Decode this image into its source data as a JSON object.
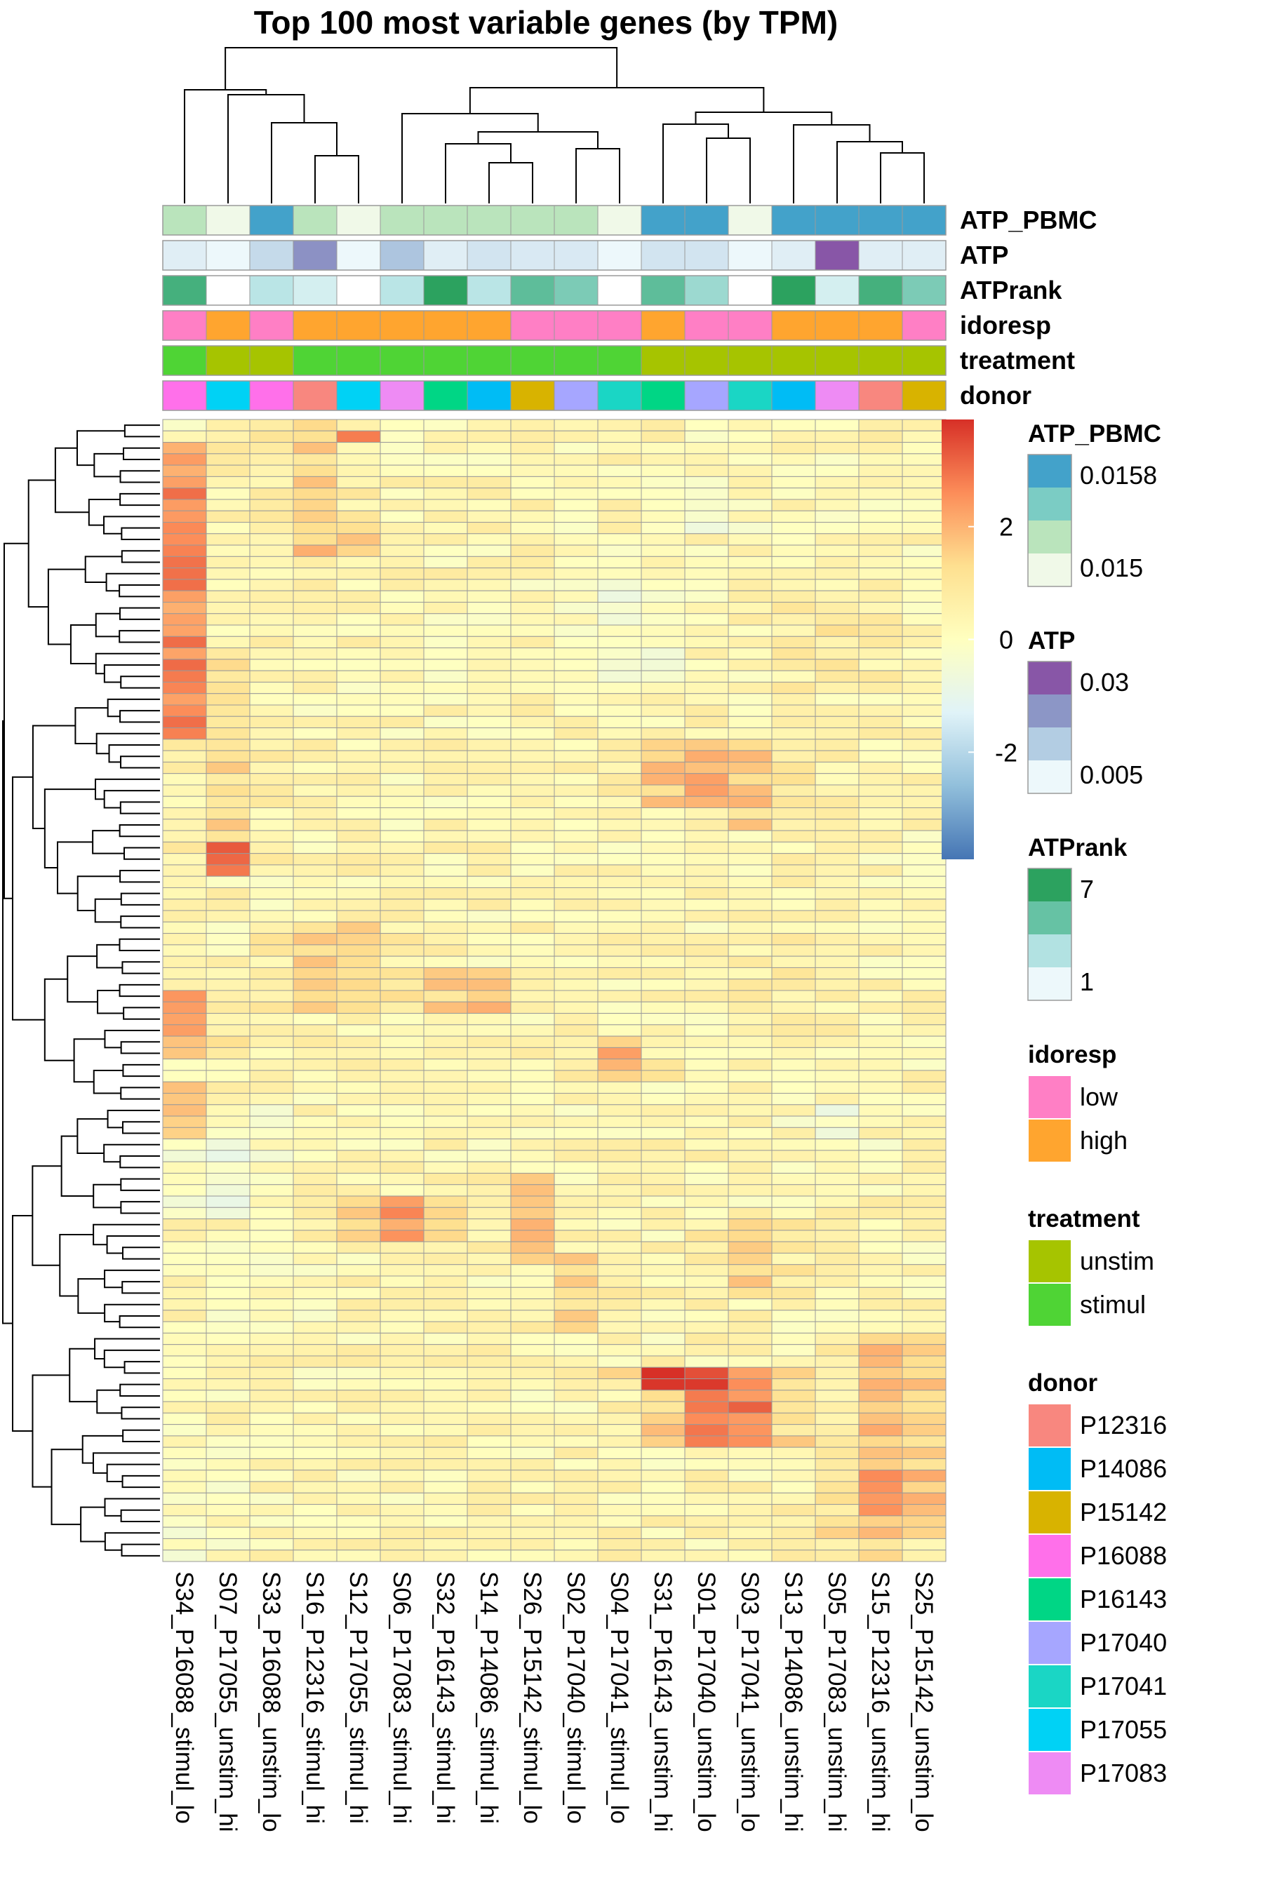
{
  "title": "Top 100 most variable genes (by TPM)",
  "chart_data": {
    "type": "heatmap",
    "title": "Top 100 most variable genes (by TPM)",
    "columns": [
      "S34_P16088_stimul_lo",
      "S07_P17055_unstim_hi",
      "S33_P16088_unstim_lo",
      "S16_P12316_stimul_hi",
      "S12_P17055_stimul_hi",
      "S06_P17083_stimul_hi",
      "S32_P16143_stimul_hi",
      "S14_P14086_stimul_hi",
      "S26_P15142_stimul_lo",
      "S02_P17040_stimul_lo",
      "S04_P17041_stimul_lo",
      "S31_P16143_unstim_hi",
      "S01_P17040_unstim_lo",
      "S03_P17041_unstim_lo",
      "S13_P14086_unstim_hi",
      "S05_P17083_unstim_hi",
      "S15_P12316_unstim_hi",
      "S25_P15142_unstim_lo"
    ],
    "n_rows": 100,
    "color_scale": {
      "ticks": [
        "2",
        "0",
        "-2"
      ],
      "tick_values": [
        2,
        0,
        -2
      ],
      "range": [
        -3.9,
        3.9
      ],
      "colors": [
        "#4575b4",
        "#91bfdb",
        "#e0f3f8",
        "#ffffbf",
        "#fee090",
        "#fc8d59",
        "#d73027"
      ]
    },
    "annotations": [
      {
        "name": "ATP_PBMC",
        "values": [
          0.015,
          0.0146,
          0.0158,
          0.015,
          0.0146,
          0.015,
          0.015,
          0.015,
          0.015,
          0.015,
          0.0146,
          0.0158,
          0.0158,
          0.0146,
          0.0158,
          0.0158,
          0.0158,
          0.0158
        ]
      },
      {
        "name": "ATP",
        "values": [
          0.006,
          0.004,
          0.01,
          0.022,
          0.004,
          0.014,
          0.006,
          0.008,
          0.007,
          0.007,
          0.004,
          0.008,
          0.008,
          0.004,
          0.006,
          0.03,
          0.006,
          0.006
        ]
      },
      {
        "name": "ATPrank",
        "values": [
          6,
          0,
          2,
          1,
          0,
          2,
          7,
          2,
          5,
          4,
          0,
          5,
          3,
          0,
          7,
          1,
          6,
          4
        ]
      },
      {
        "name": "idoresp",
        "values": [
          "low",
          "high",
          "low",
          "high",
          "high",
          "high",
          "high",
          "high",
          "low",
          "low",
          "low",
          "high",
          "low",
          "low",
          "high",
          "high",
          "high",
          "low"
        ]
      },
      {
        "name": "treatment",
        "values": [
          "stimul",
          "unstim",
          "unstim",
          "stimul",
          "stimul",
          "stimul",
          "stimul",
          "stimul",
          "stimul",
          "stimul",
          "stimul",
          "unstim",
          "unstim",
          "unstim",
          "unstim",
          "unstim",
          "unstim",
          "unstim"
        ]
      },
      {
        "name": "donor",
        "values": [
          "P16088",
          "P17055",
          "P16088",
          "P12316",
          "P17055",
          "P17083",
          "P16143",
          "P14086",
          "P15142",
          "P17040",
          "P17041",
          "P16143",
          "P17040",
          "P17041",
          "P14086",
          "P17083",
          "P12316",
          "P15142"
        ]
      }
    ],
    "legends": [
      {
        "name": "ATP_PBMC",
        "kind": "continuous",
        "colors": [
          "#43a2ca",
          "#7bccc4",
          "#bae4bc",
          "#f0f9e8"
        ],
        "labels": [
          "0.0158",
          "0.015"
        ]
      },
      {
        "name": "ATP",
        "kind": "continuous",
        "colors": [
          "#8856a7",
          "#8c96c6",
          "#b3cde3",
          "#edf8fb"
        ],
        "labels": [
          "0.03",
          "0.005"
        ]
      },
      {
        "name": "ATPrank",
        "kind": "continuous",
        "colors": [
          "#2ca25f",
          "#66c2a4",
          "#b2e2e2",
          "#edf8fb"
        ],
        "labels": [
          "7",
          "1"
        ]
      },
      {
        "name": "idoresp",
        "kind": "discrete",
        "items": [
          {
            "label": "low",
            "color": "#ff7fc5"
          },
          {
            "label": "high",
            "color": "#ffa52f"
          }
        ]
      },
      {
        "name": "treatment",
        "kind": "discrete",
        "items": [
          {
            "label": "unstim",
            "color": "#a6c400"
          },
          {
            "label": "stimul",
            "color": "#4fd435"
          }
        ]
      },
      {
        "name": "donor",
        "kind": "discrete",
        "items": [
          {
            "label": "P12316",
            "color": "#f8877f"
          },
          {
            "label": "P14086",
            "color": "#00bcf5"
          },
          {
            "label": "P15142",
            "color": "#d8b300"
          },
          {
            "label": "P16088",
            "color": "#ff70ea"
          },
          {
            "label": "P16143",
            "color": "#00d685"
          },
          {
            "label": "P17040",
            "color": "#a6a6ff"
          },
          {
            "label": "P17041",
            "color": "#1ad6c5"
          },
          {
            "label": "P17055",
            "color": "#00d2f5"
          },
          {
            "label": "P17083",
            "color": "#ee8bf4"
          }
        ]
      }
    ]
  }
}
